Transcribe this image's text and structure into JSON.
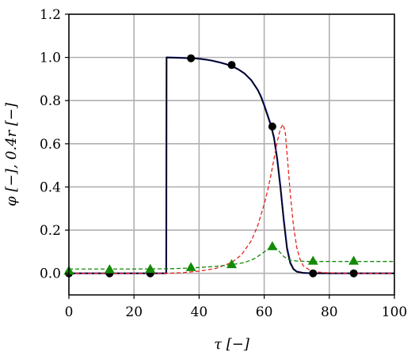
{
  "chart_data": {
    "type": "line",
    "xlabel": "τ [−]",
    "ylabel": "φ [−], 0.4r [−]",
    "xlim": [
      0,
      100
    ],
    "ylim": [
      -0.1,
      1.2
    ],
    "grid": true,
    "x_ticks": [
      0,
      20,
      40,
      60,
      80,
      100
    ],
    "x_tick_labels": [
      "0",
      "20",
      "40",
      "60",
      "80",
      "100"
    ],
    "y_ticks": [
      0.0,
      0.2,
      0.4,
      0.6,
      0.8,
      1.0,
      1.2
    ],
    "y_tick_labels": [
      "0.0",
      "0.2",
      "0.4",
      "0.6",
      "0.8",
      "1.0",
      "1.2"
    ],
    "series": [
      {
        "style": "solid",
        "color": "#1f2bb0",
        "x": [
          0,
          29.9,
          29.95,
          30,
          32,
          34,
          36,
          38,
          40,
          42,
          44,
          46,
          48,
          50,
          52,
          54,
          56,
          58,
          59,
          60,
          61,
          62,
          63,
          64,
          65,
          66,
          67,
          68,
          69,
          70,
          72,
          75,
          80,
          90,
          100
        ],
        "y": [
          0.0,
          0.0,
          0.5,
          1.0,
          0.999,
          0.998,
          0.997,
          0.996,
          0.994,
          0.99,
          0.985,
          0.978,
          0.97,
          0.96,
          0.945,
          0.925,
          0.895,
          0.85,
          0.82,
          0.78,
          0.735,
          0.69,
          0.63,
          0.53,
          0.4,
          0.25,
          0.12,
          0.05,
          0.02,
          0.008,
          0.002,
          0.0,
          0.0,
          0.0,
          0.0
        ]
      },
      {
        "style": "solid",
        "color": "#000000",
        "x": [
          0,
          29.9,
          29.95,
          30,
          32,
          34,
          36,
          38,
          40,
          42,
          44,
          46,
          48,
          50,
          52,
          54,
          56,
          58,
          59,
          60,
          61,
          62,
          63,
          64,
          65,
          66,
          67,
          68,
          69,
          70,
          72,
          75,
          80,
          90,
          100
        ],
        "y": [
          0.0,
          0.0,
          0.5,
          1.0,
          0.999,
          0.998,
          0.997,
          0.996,
          0.994,
          0.99,
          0.985,
          0.978,
          0.97,
          0.96,
          0.945,
          0.925,
          0.895,
          0.85,
          0.815,
          0.775,
          0.73,
          0.685,
          0.625,
          0.525,
          0.39,
          0.24,
          0.11,
          0.045,
          0.018,
          0.007,
          0.002,
          0.0,
          0.0,
          0.0,
          0.0
        ]
      },
      {
        "style": "dashed",
        "color": "#e8221b",
        "x": [
          0,
          30,
          35,
          40,
          45,
          50,
          53,
          56,
          58,
          60,
          61,
          62,
          63,
          64,
          65,
          65.8,
          66.5,
          67.2,
          68,
          69,
          70,
          71,
          72,
          74,
          77,
          80,
          85,
          90,
          100
        ],
        "y": [
          0.0,
          0.0,
          0.003,
          0.01,
          0.022,
          0.05,
          0.085,
          0.15,
          0.22,
          0.32,
          0.38,
          0.45,
          0.53,
          0.61,
          0.67,
          0.69,
          0.65,
          0.52,
          0.37,
          0.22,
          0.12,
          0.065,
          0.035,
          0.015,
          0.005,
          0.002,
          0.0,
          0.0,
          0.0
        ]
      },
      {
        "style": "dashed",
        "color": "#138a07",
        "x": [
          0,
          10,
          20,
          30,
          35,
          40,
          45,
          50,
          54,
          57,
          59,
          61,
          62,
          63,
          64,
          65,
          66,
          67,
          68,
          70,
          73,
          76,
          80,
          85,
          90,
          100
        ],
        "y": [
          0.02,
          0.02,
          0.02,
          0.021,
          0.023,
          0.027,
          0.032,
          0.04,
          0.05,
          0.068,
          0.088,
          0.11,
          0.118,
          0.12,
          0.112,
          0.095,
          0.078,
          0.067,
          0.061,
          0.057,
          0.055,
          0.055,
          0.055,
          0.055,
          0.055,
          0.055
        ]
      }
    ],
    "markers": [
      {
        "shape": "circle",
        "color": "#000000",
        "x": [
          0,
          12.5,
          25,
          37.5,
          50,
          62.5,
          75,
          87.5
        ],
        "y": [
          0.0,
          0.0,
          0.0,
          0.996,
          0.965,
          0.68,
          0.0,
          0.0
        ]
      },
      {
        "shape": "triangle",
        "color": "#138a07",
        "x": [
          0,
          12.5,
          25,
          37.5,
          50,
          62.5,
          75,
          87.5
        ],
        "y": [
          0.012,
          0.018,
          0.02,
          0.028,
          0.042,
          0.125,
          0.058,
          0.058
        ]
      }
    ]
  }
}
